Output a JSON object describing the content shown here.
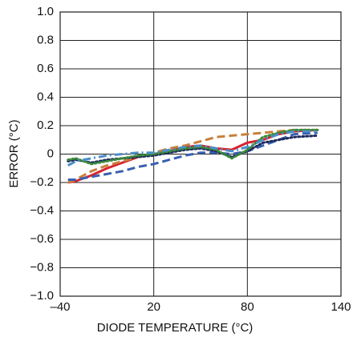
{
  "chart_data": {
    "type": "line",
    "x_label": "DIODE TEMPERATURE (°C)",
    "y_label": "ERROR (°C)",
    "x": [
      -35,
      -30,
      -20,
      -10,
      0,
      10,
      20,
      30,
      40,
      50,
      60,
      70,
      80,
      90,
      100,
      110,
      125
    ],
    "series": [
      {
        "color": "#d8232f",
        "line_style": "solid",
        "values": [
          -0.2,
          -0.19,
          -0.15,
          -0.1,
          -0.06,
          -0.02,
          0.0,
          0.02,
          0.05,
          0.06,
          0.04,
          0.03,
          0.08,
          0.1,
          0.14,
          0.16,
          0.17
        ]
      },
      {
        "color": "#c8803c",
        "line_style": "dashed",
        "values": [
          -0.2,
          -0.18,
          -0.12,
          -0.08,
          -0.05,
          -0.02,
          0.01,
          0.04,
          0.06,
          0.09,
          0.12,
          0.13,
          0.14,
          0.15,
          0.16,
          0.17,
          0.17
        ]
      },
      {
        "color": "#3a5fb0",
        "line_style": "dashed",
        "values": [
          -0.18,
          -0.18,
          -0.16,
          -0.14,
          -0.12,
          -0.09,
          -0.07,
          -0.04,
          -0.01,
          0.01,
          0.01,
          0.0,
          0.02,
          0.06,
          0.1,
          0.14,
          0.15
        ]
      },
      {
        "color": "#1c2a5c",
        "line_style": "dotted",
        "values": [
          -0.05,
          -0.04,
          -0.06,
          -0.04,
          -0.03,
          -0.02,
          -0.01,
          0.01,
          0.03,
          0.04,
          0.02,
          -0.02,
          0.02,
          0.08,
          0.1,
          0.12,
          0.13
        ]
      },
      {
        "color": "#3a8a3a",
        "line_style": "dotted",
        "values": [
          -0.04,
          -0.03,
          -0.07,
          -0.05,
          -0.03,
          -0.01,
          0.0,
          0.02,
          0.04,
          0.05,
          0.03,
          -0.03,
          0.03,
          0.12,
          0.15,
          0.17,
          0.17
        ]
      },
      {
        "color": "#4a8fc8",
        "line_style": "dashdot",
        "values": [
          -0.08,
          -0.05,
          -0.03,
          -0.01,
          0.0,
          0.01,
          0.01,
          0.03,
          0.05,
          0.06,
          0.04,
          0.02,
          0.05,
          0.1,
          0.14,
          0.16,
          0.16
        ]
      }
    ],
    "xlim": [
      -40,
      140
    ],
    "xticks": [
      {
        "value": -40,
        "label": "–40"
      },
      20,
      80,
      140
    ],
    "ylim": [
      -1,
      1
    ],
    "yticks": [
      {
        "value": 1,
        "label": "1.0"
      },
      0.8,
      0.6,
      0.4,
      0.2,
      0,
      {
        "value": -0.2,
        "label": "−0.2"
      },
      {
        "value": -0.4,
        "label": "−0.4"
      },
      {
        "value": -0.6,
        "label": "−0.6"
      },
      {
        "value": -0.8,
        "label": "−0.8"
      },
      {
        "value": -1,
        "label": "−1.0"
      }
    ],
    "grid": true
  }
}
